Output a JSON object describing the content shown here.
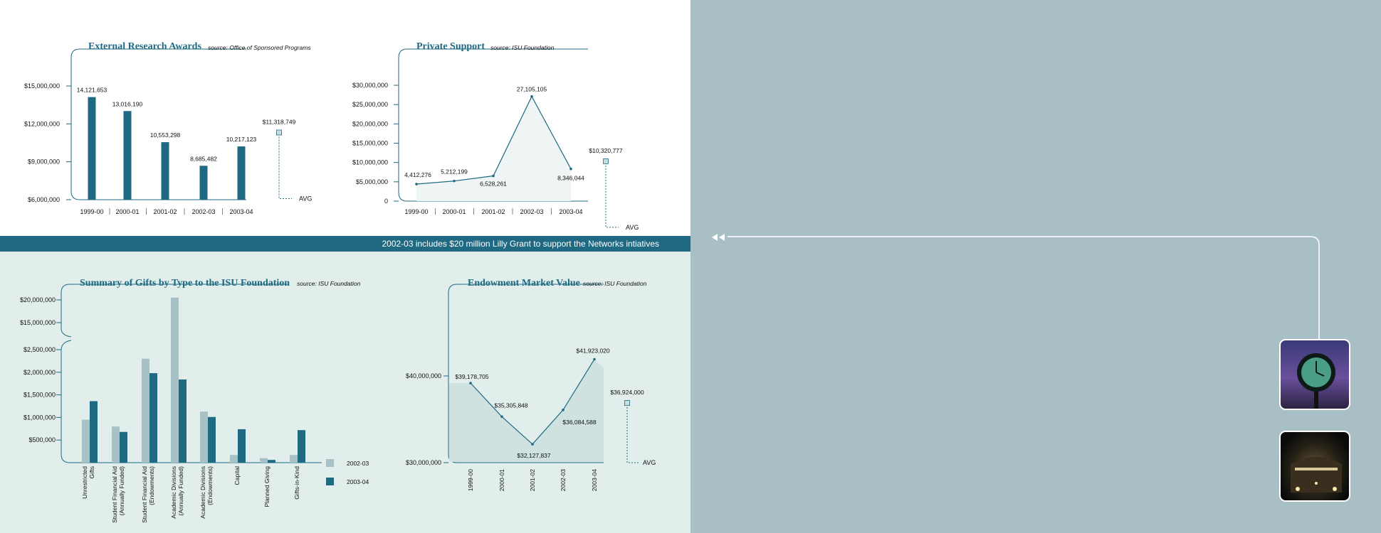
{
  "banner": {
    "text": "2002-03 includes $20 million Lilly Grant to support the Networks intiatives"
  },
  "colors": {
    "primary": "#1f6a82",
    "light": "#a6c2c6",
    "panel_white": "#ffffff",
    "panel_mint": "#e1eeec",
    "panel_slate": "#a8bfc6"
  },
  "chart_data": [
    {
      "id": "research",
      "type": "bar",
      "title": "External Research Awards",
      "source": "source: Office of Sponsored Programs",
      "categories": [
        "1999-00",
        "2000-01",
        "2001-02",
        "2002-03",
        "2003-04"
      ],
      "values": [
        14121653,
        13016190,
        10553298,
        8685482,
        10217123
      ],
      "value_labels": [
        "14,121,653",
        "13,016,190",
        "10,553,298",
        "8,685,482",
        "10,217,123"
      ],
      "y_ticks": [
        6000000,
        9000000,
        12000000,
        15000000
      ],
      "y_tick_labels": [
        "$6,000,000",
        "$9,000,000",
        "$12,000,000",
        "$15,000,000"
      ],
      "ylim": [
        6000000,
        15000000
      ],
      "average": 11318749,
      "average_label": "$11,318,749",
      "avg_text": "AVG"
    },
    {
      "id": "private",
      "type": "area",
      "title": "Private Support",
      "source": "source: ISU Foundation",
      "categories": [
        "1999-00",
        "2000-01",
        "2001-02",
        "2002-03",
        "2003-04"
      ],
      "values": [
        4412276,
        5212199,
        6528261,
        27105105,
        8346044
      ],
      "value_labels": [
        "4,412,276",
        "5,212,199",
        "6,528,261",
        "27,105,105",
        "8,346,044"
      ],
      "y_ticks": [
        0,
        5000000,
        10000000,
        15000000,
        20000000,
        25000000,
        30000000
      ],
      "y_tick_labels": [
        "0",
        "$5,000,000",
        "$10,000,000",
        "$15,000,000",
        "$20,000,000",
        "$25,000,000",
        "$30,000,000"
      ],
      "ylim": [
        0,
        30000000
      ],
      "average": 10320777,
      "average_label": "$10,320,777",
      "avg_text": "AVG"
    },
    {
      "id": "gifts",
      "type": "bar",
      "title": "Summary of Gifts by Type to the ISU Foundation",
      "source": "source: ISU Foundation",
      "categories": [
        "Unrestricted Gifts",
        "Student Financial Aid (Annually Funded)",
        "Student Financial Aid (Endowments)",
        "Academic Divisions (Annually Funded)",
        "Academic Divisions (Endowments)",
        "Capital",
        "Planned Giving",
        "Gifts-in-Kind"
      ],
      "series": [
        {
          "name": "2002-03",
          "values": [
            950000,
            800000,
            2300000,
            20500000,
            1130000,
            170000,
            100000,
            170000
          ],
          "color": "#a6c2c6"
        },
        {
          "name": "2003-04",
          "values": [
            1360000,
            680000,
            1980000,
            1840000,
            1010000,
            740000,
            60000,
            720000
          ],
          "color": "#1f6a82"
        }
      ],
      "y_ticks": [
        500000,
        1000000,
        1500000,
        2000000,
        2500000,
        15000000,
        20000000
      ],
      "y_tick_labels": [
        "$500,000",
        "$1,000,000",
        "$1,500,000",
        "$2,000,000",
        "$2,500,000",
        "$15,000,000",
        "$20,000,000"
      ],
      "axis_break": true,
      "legend_position": "right",
      "ylim": [
        0,
        20500000
      ]
    },
    {
      "id": "endowment",
      "type": "area",
      "title": "Endowment Market Value",
      "source": "source: ISU Foundation",
      "categories": [
        "1999-00",
        "2000-01",
        "2001-02",
        "2002-03",
        "2003-04"
      ],
      "values": [
        39178705,
        35305848,
        32127837,
        36084588,
        41923020
      ],
      "value_labels": [
        "$39,178,705",
        "$35,305,848",
        "$32,127,837",
        "$36,084,588",
        "$41,923,020"
      ],
      "y_ticks": [
        30000000,
        40000000
      ],
      "y_tick_labels": [
        "$30,000,000",
        "$40,000,000"
      ],
      "ylim": [
        30000000,
        42000000
      ],
      "average": 36924000,
      "average_label": "$36,924,000",
      "avg_text": "AVG"
    }
  ]
}
